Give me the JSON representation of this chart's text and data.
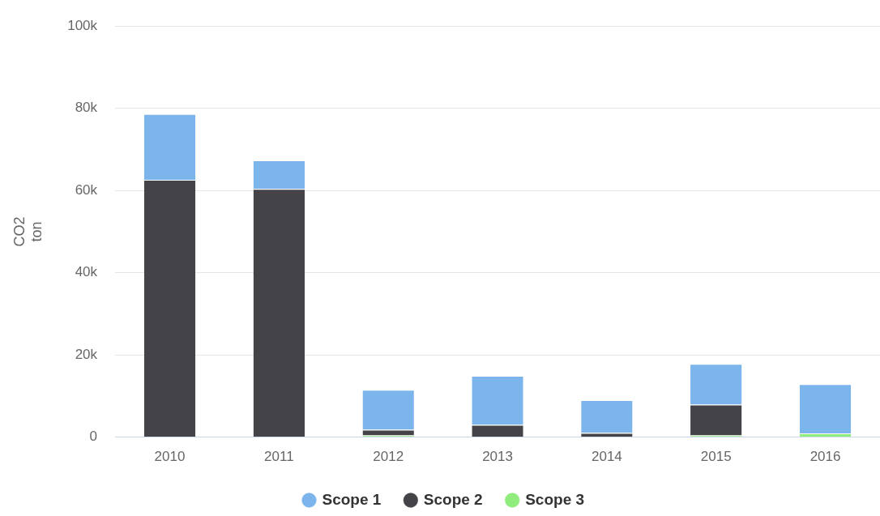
{
  "chart_data": {
    "type": "bar",
    "stacked": true,
    "ylabel": "CO2\nton",
    "categories": [
      "2010",
      "2011",
      "2012",
      "2013",
      "2014",
      "2015",
      "2016"
    ],
    "series": [
      {
        "name": "Scope 3",
        "color": "#90ed7d",
        "values": [
          0,
          0,
          0.4,
          0,
          0,
          0.4,
          0.9
        ]
      },
      {
        "name": "Scope 2",
        "color": "#434348",
        "values": [
          62.6,
          60.4,
          1.4,
          3.0,
          1.0,
          7.5,
          0
        ]
      },
      {
        "name": "Scope 1",
        "color": "#7cb5ec",
        "values": [
          16.0,
          6.9,
          9.7,
          11.9,
          8.0,
          9.9,
          12.0
        ]
      }
    ],
    "ylim": [
      0,
      100
    ],
    "yticks": [
      0,
      {
        "value": 20,
        "label": "20k"
      },
      {
        "value": 40,
        "label": "40k"
      },
      {
        "value": 60,
        "label": "60k"
      },
      {
        "value": 80,
        "label": "80k"
      },
      {
        "value": 100,
        "label": "100k"
      }
    ],
    "grid": "y",
    "legend": "bottom"
  }
}
